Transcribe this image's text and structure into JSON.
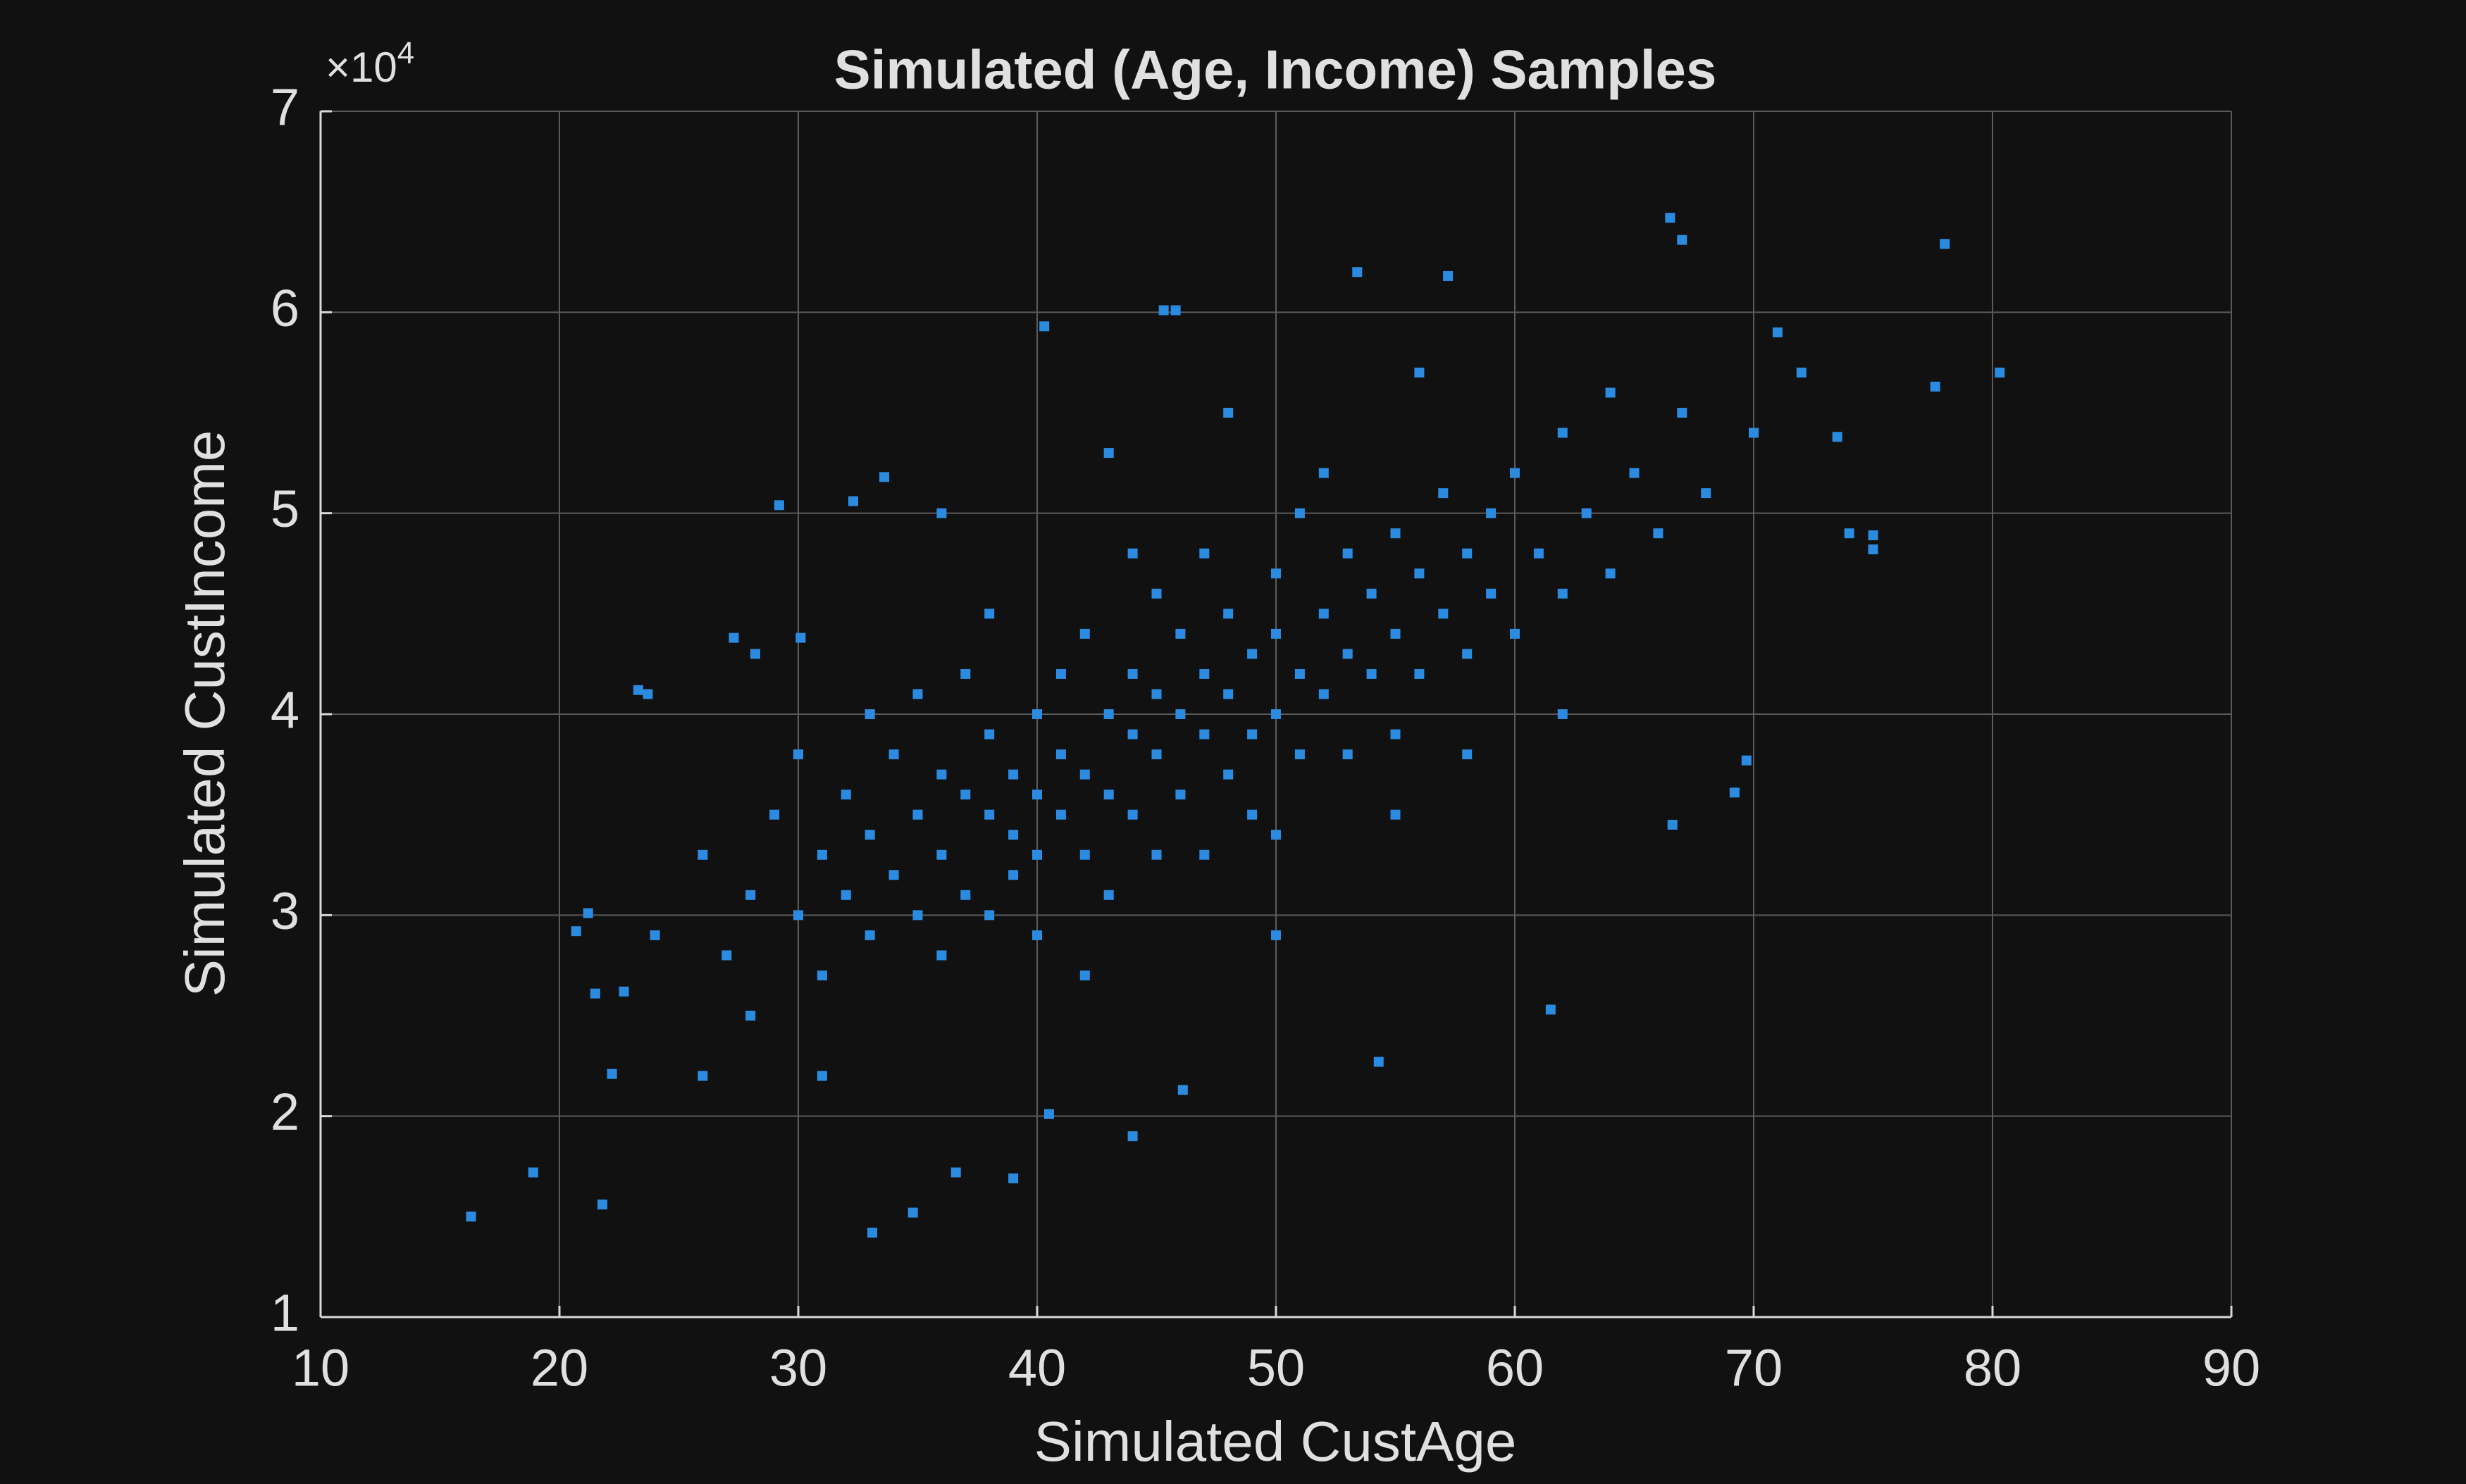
{
  "chart_data": {
    "type": "scatter",
    "title": "Simulated (Age, Income) Samples",
    "xlabel": "Simulated CustAge",
    "ylabel": "Simulated CustIncome",
    "y_multiplier": {
      "base": "×10",
      "exponent": "4"
    },
    "color": "#2a8be0",
    "grid": true,
    "xlim": [
      10,
      90
    ],
    "xticks": [
      10,
      20,
      30,
      40,
      50,
      60,
      70,
      80,
      90
    ],
    "ylim": [
      10000,
      70000
    ],
    "yticks": [
      {
        "value": 10000,
        "label": "1"
      },
      {
        "value": 20000,
        "label": "2"
      },
      {
        "value": 30000,
        "label": "3"
      },
      {
        "value": 40000,
        "label": "4"
      },
      {
        "value": 50000,
        "label": "5"
      },
      {
        "value": 60000,
        "label": "6"
      },
      {
        "value": 70000,
        "label": "7"
      }
    ],
    "x": [
      16.3,
      18.9,
      21.8,
      33.1,
      34.8,
      78,
      80.3,
      77.6,
      66.5,
      67,
      75,
      75,
      74,
      73.5,
      61.5,
      54.3,
      46.1,
      44,
      40.5,
      39,
      36.6,
      29.2,
      32.3,
      33.6,
      40.3,
      45.3,
      45.8,
      53.4,
      57.2,
      69.7,
      69.2,
      66.6,
      20.7,
      21.2,
      21.5,
      22.2,
      22.7,
      23.3,
      23.7,
      27.3,
      28.2,
      30.1,
      26,
      27,
      28,
      29,
      30,
      30,
      31,
      31,
      32,
      32,
      33,
      33,
      34,
      34,
      35,
      35,
      35,
      36,
      36,
      36,
      37,
      37,
      37,
      38,
      38,
      38,
      39,
      39,
      39,
      40,
      40,
      40,
      40,
      41,
      41,
      41,
      42,
      42,
      42,
      43,
      43,
      43,
      44,
      44,
      44,
      45,
      45,
      45,
      45,
      46,
      46,
      46,
      47,
      47,
      47,
      48,
      48,
      48,
      49,
      49,
      49,
      50,
      50,
      50,
      51,
      51,
      51,
      52,
      52,
      53,
      53,
      53,
      54,
      54,
      55,
      55,
      55,
      56,
      56,
      57,
      57,
      58,
      58,
      59,
      59,
      60,
      60,
      61,
      62,
      62,
      63,
      64,
      65,
      66,
      67,
      68,
      70,
      71,
      72,
      38,
      42,
      44,
      47,
      50,
      52,
      55,
      33,
      28,
      26,
      31,
      24,
      48,
      58,
      62,
      64,
      36,
      43,
      50,
      56
    ],
    "y": [
      15000,
      17200,
      15600,
      14200,
      15200,
      63400,
      57000,
      56300,
      64700,
      63600,
      48900,
      48200,
      49000,
      53800,
      25300,
      22700,
      21300,
      19000,
      20100,
      16900,
      17200,
      50400,
      50600,
      51800,
      59300,
      60100,
      60100,
      62000,
      61800,
      37700,
      36100,
      34500,
      29200,
      30100,
      26100,
      22100,
      26200,
      41200,
      41000,
      43800,
      43000,
      43800,
      33000,
      28000,
      31000,
      35000,
      30000,
      38000,
      33000,
      27000,
      36000,
      31000,
      34000,
      29000,
      38000,
      32000,
      35000,
      30000,
      41000,
      33000,
      37000,
      28000,
      36000,
      31000,
      42000,
      35000,
      39000,
      30000,
      34000,
      37000,
      32000,
      36000,
      40000,
      33000,
      29000,
      38000,
      35000,
      42000,
      37000,
      33000,
      44000,
      40000,
      36000,
      31000,
      39000,
      42000,
      35000,
      41000,
      38000,
      46000,
      33000,
      40000,
      44000,
      36000,
      42000,
      39000,
      48000,
      41000,
      37000,
      45000,
      43000,
      39000,
      35000,
      44000,
      40000,
      47000,
      42000,
      38000,
      50000,
      45000,
      41000,
      43000,
      48000,
      38000,
      46000,
      42000,
      44000,
      49000,
      39000,
      47000,
      42000,
      45000,
      51000,
      48000,
      43000,
      50000,
      46000,
      44000,
      52000,
      48000,
      46000,
      54000,
      50000,
      47000,
      52000,
      49000,
      55000,
      51000,
      54000,
      59000,
      57000,
      45000,
      27000,
      48000,
      33000,
      34000,
      52000,
      35000,
      40000,
      25000,
      22000,
      22000,
      29000,
      55000,
      38000,
      40000,
      56000,
      50000,
      53000,
      29000,
      57000
    ]
  }
}
